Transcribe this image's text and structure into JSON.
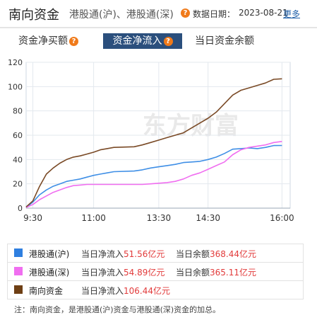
{
  "header": {
    "title": "南向资金",
    "subtitle": "港股通(沪)、港股通(深)",
    "date_label": "数据日期：",
    "date": "2023-08-21",
    "more": "更多"
  },
  "tabs": [
    {
      "label": "资金净买额",
      "active": false
    },
    {
      "label": "资金净流入",
      "active": true
    },
    {
      "label": "当日资金余额",
      "active": false
    }
  ],
  "chart_data": {
    "type": "line",
    "title": "",
    "xlabel": "",
    "ylabel": "",
    "ylim": [
      0,
      120
    ],
    "yticks": [
      0,
      20,
      40,
      60,
      80,
      100,
      120
    ],
    "xtick_labels": [
      "9:30",
      "11:00",
      "13:30",
      "14:30",
      "16:00"
    ],
    "grid": true,
    "watermark": "东方财富",
    "series": [
      {
        "name": "港股通(沪)",
        "color": "#3f8fe6",
        "points": [
          [
            "9:20",
            0.5
          ],
          [
            "9:30",
            5
          ],
          [
            "9:40",
            11
          ],
          [
            "9:50",
            15
          ],
          [
            "10:00",
            18
          ],
          [
            "10:10",
            20
          ],
          [
            "10:20",
            22
          ],
          [
            "10:30",
            23
          ],
          [
            "10:40",
            24
          ],
          [
            "10:50",
            25.5
          ],
          [
            "11:00",
            27
          ],
          [
            "11:10",
            28
          ],
          [
            "11:20",
            29
          ],
          [
            "11:30",
            30
          ],
          [
            "13:00",
            30.5
          ],
          [
            "13:10",
            31.5
          ],
          [
            "13:20",
            33
          ],
          [
            "13:30",
            34
          ],
          [
            "13:40",
            35
          ],
          [
            "13:50",
            36
          ],
          [
            "14:00",
            37.5
          ],
          [
            "14:10",
            38
          ],
          [
            "14:20",
            38.5
          ],
          [
            "14:30",
            40
          ],
          [
            "14:40",
            42
          ],
          [
            "14:50",
            45
          ],
          [
            "15:00",
            48.5
          ],
          [
            "15:10",
            49
          ],
          [
            "15:20",
            49.5
          ],
          [
            "15:30",
            49
          ],
          [
            "15:40",
            50
          ],
          [
            "15:50",
            51.5
          ],
          [
            "16:00",
            51.56
          ]
        ]
      },
      {
        "name": "港股通(深)",
        "color": "#f06ef0",
        "points": [
          [
            "9:20",
            0.5
          ],
          [
            "9:30",
            3
          ],
          [
            "9:40",
            7
          ],
          [
            "9:50",
            10
          ],
          [
            "10:00",
            13
          ],
          [
            "10:10",
            15
          ],
          [
            "10:20",
            17
          ],
          [
            "10:30",
            18.5
          ],
          [
            "10:40",
            19
          ],
          [
            "10:50",
            19.5
          ],
          [
            "11:00",
            19.5
          ],
          [
            "11:10",
            19.5
          ],
          [
            "11:20",
            19.5
          ],
          [
            "11:30",
            19.5
          ],
          [
            "13:00",
            19.5
          ],
          [
            "13:10",
            19.5
          ],
          [
            "13:20",
            20
          ],
          [
            "13:30",
            20.5
          ],
          [
            "13:40",
            21
          ],
          [
            "13:50",
            22
          ],
          [
            "14:00",
            24
          ],
          [
            "14:10",
            27
          ],
          [
            "14:20",
            29
          ],
          [
            "14:30",
            32
          ],
          [
            "14:40",
            35
          ],
          [
            "14:50",
            38
          ],
          [
            "15:00",
            44
          ],
          [
            "15:10",
            48
          ],
          [
            "15:20",
            50
          ],
          [
            "15:30",
            51
          ],
          [
            "15:40",
            52
          ],
          [
            "15:50",
            54
          ],
          [
            "16:00",
            54.89
          ]
        ]
      },
      {
        "name": "南向资金",
        "color": "#7a4a26",
        "points": [
          [
            "9:20",
            1
          ],
          [
            "9:30",
            6
          ],
          [
            "9:40",
            18
          ],
          [
            "9:50",
            28
          ],
          [
            "10:00",
            33
          ],
          [
            "10:10",
            37
          ],
          [
            "10:20",
            40
          ],
          [
            "10:30",
            42
          ],
          [
            "10:40",
            43
          ],
          [
            "10:50",
            44.5
          ],
          [
            "11:00",
            46
          ],
          [
            "11:10",
            48
          ],
          [
            "11:20",
            49
          ],
          [
            "11:30",
            50
          ],
          [
            "13:00",
            50.5
          ],
          [
            "13:10",
            52
          ],
          [
            "13:20",
            54
          ],
          [
            "13:30",
            56
          ],
          [
            "13:40",
            58
          ],
          [
            "13:50",
            60
          ],
          [
            "14:00",
            62
          ],
          [
            "14:10",
            66
          ],
          [
            "14:20",
            70
          ],
          [
            "14:30",
            74
          ],
          [
            "14:40",
            79
          ],
          [
            "14:50",
            86
          ],
          [
            "15:00",
            93
          ],
          [
            "15:10",
            97
          ],
          [
            "15:20",
            99
          ],
          [
            "15:30",
            101
          ],
          [
            "15:40",
            103
          ],
          [
            "15:50",
            106
          ],
          [
            "16:00",
            106.44
          ]
        ]
      }
    ]
  },
  "legend": [
    {
      "name": "港股通(沪)",
      "color": "#2f7fe0",
      "flow_label": "当日净流入",
      "flow_value": "51.56亿元",
      "balance_label": "当日余额",
      "balance_value": "368.44亿元"
    },
    {
      "name": "港股通(深)",
      "color": "#f06ef0",
      "flow_label": "当日净流入",
      "flow_value": "54.89亿元",
      "balance_label": "当日余额",
      "balance_value": "365.11亿元"
    },
    {
      "name": "南向资金",
      "color": "#6e3f14",
      "flow_label": "当日净流入",
      "flow_value": "106.44亿元"
    }
  ],
  "note": "注：南向资金，是港股通(沪)资金与港股通(深)资金的加总。"
}
